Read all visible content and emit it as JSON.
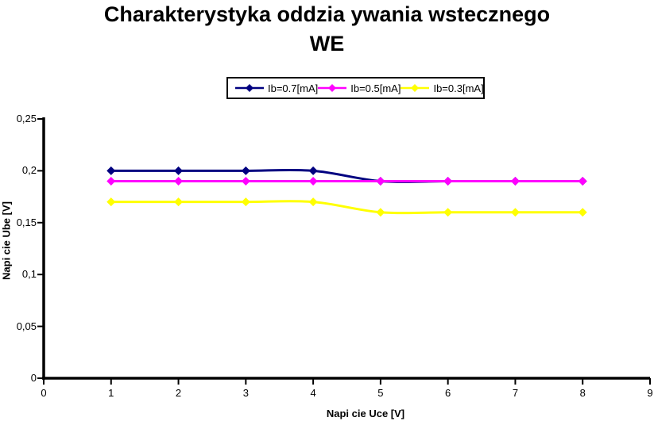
{
  "chart_data": {
    "type": "line",
    "title": "Charakterystyka oddzia ywania wstecznego WE",
    "title_lines": [
      "Charakterystyka oddzia ywania wstecznego",
      "WE"
    ],
    "xlabel": "Napi cie Uce [V]",
    "ylabel": "Napi cie Ube [V]",
    "x": [
      1,
      2,
      3,
      4,
      5,
      6,
      7,
      8
    ],
    "series": [
      {
        "name": "Ib=0.7[mA]",
        "color": "#000080",
        "values": [
          0.2,
          0.2,
          0.2,
          0.2,
          0.19,
          0.19,
          0.19,
          0.19
        ]
      },
      {
        "name": "Ib=0.5[mA]",
        "color": "#FF00FF",
        "values": [
          0.19,
          0.19,
          0.19,
          0.19,
          0.19,
          0.19,
          0.19,
          0.19
        ]
      },
      {
        "name": "Ib=0.3[mA]",
        "color": "#FFFF00",
        "values": [
          0.17,
          0.17,
          0.17,
          0.17,
          0.16,
          0.16,
          0.16,
          0.16
        ]
      }
    ],
    "xlim": [
      0,
      9
    ],
    "ylim": [
      0,
      0.25
    ],
    "x_ticks": [
      {
        "value": 0,
        "label": "0"
      },
      {
        "value": 1,
        "label": "1"
      },
      {
        "value": 2,
        "label": "2"
      },
      {
        "value": 3,
        "label": "3"
      },
      {
        "value": 4,
        "label": "4"
      },
      {
        "value": 5,
        "label": "5"
      },
      {
        "value": 6,
        "label": "6"
      },
      {
        "value": 7,
        "label": "7"
      },
      {
        "value": 8,
        "label": "8"
      },
      {
        "value": 9,
        "label": "9"
      }
    ],
    "y_ticks": [
      {
        "value": 0,
        "label": "0"
      },
      {
        "value": 0.05,
        "label": "0,05"
      },
      {
        "value": 0.1,
        "label": "0,1"
      },
      {
        "value": 0.15,
        "label": "0,15"
      },
      {
        "value": 0.2,
        "label": "0,2"
      },
      {
        "value": 0.25,
        "label": "0,25"
      }
    ],
    "grid": false,
    "legend_position": "top-center",
    "line_style": "smoothed",
    "marker": "diamond",
    "axis_color": "#000000",
    "background_color": "#FFFFFF",
    "decimal_separator": "comma"
  }
}
